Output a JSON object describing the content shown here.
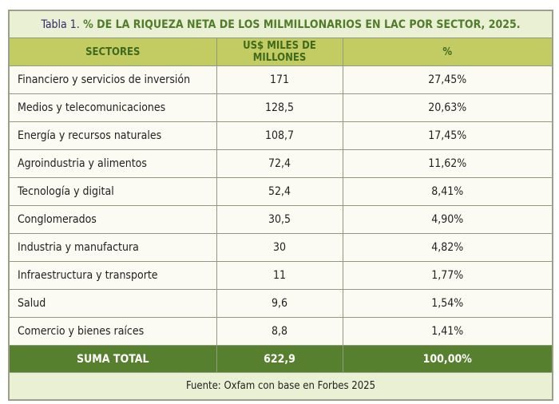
{
  "title": {
    "lead": "Tabla 1.",
    "text": " % DE LA RIQUEZA NETA DE LOS MILMILLONARIOS EN LAC POR SECTOR, 2025."
  },
  "headers": [
    "SECTORES",
    "US$ MILES DE MILLONES",
    "%"
  ],
  "rows": [
    [
      "Financiero y servicios de inversión",
      "171",
      "27,45%"
    ],
    [
      "Medios y telecomunicaciones",
      "128,5",
      "20,63%"
    ],
    [
      "Energía y recursos naturales",
      "108,7",
      "17,45%"
    ],
    [
      "Agroindustria y alimentos",
      "72,4",
      "11,62%"
    ],
    [
      "Tecnología y digital",
      "52,4",
      "8,41%"
    ],
    [
      "Conglomerados",
      "30,5",
      "4,90%"
    ],
    [
      "Industria y manufactura",
      "30",
      "4,82%"
    ],
    [
      "Infraestructura y transporte",
      "11",
      "1,77%"
    ],
    [
      "Salud",
      "9,6",
      "1,54%"
    ],
    [
      "Comercio y bienes raíces",
      "8,8",
      "1,41%"
    ]
  ],
  "total": [
    "SUMA TOTAL",
    "622,9",
    "100,00%"
  ],
  "source": "Fuente: Oxfam con base en Forbes 2025"
}
